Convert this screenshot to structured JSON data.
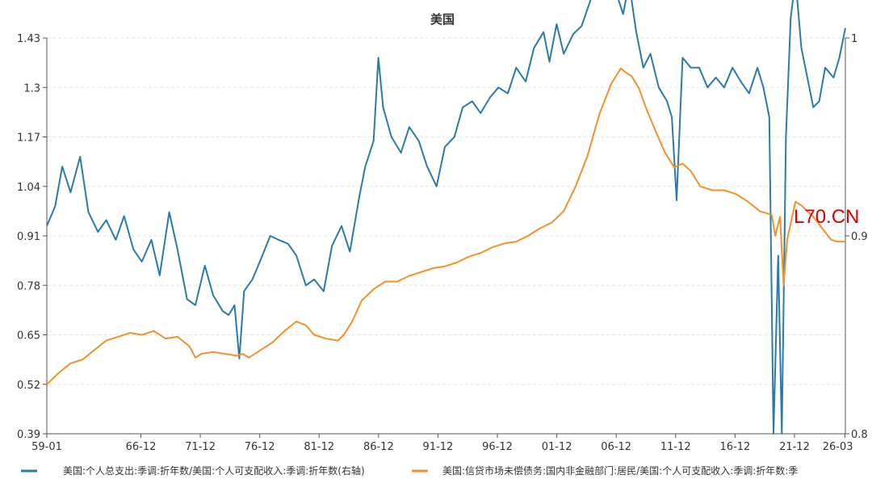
{
  "chart_data": {
    "type": "line",
    "title": "美国",
    "x_ticks": [
      "59-01",
      "66-12",
      "71-12",
      "76-12",
      "81-12",
      "86-12",
      "91-12",
      "96-12",
      "01-12",
      "06-12",
      "11-12",
      "16-12",
      "21-12",
      "26-03"
    ],
    "y_left": {
      "ticks": [
        "0.39",
        "0.52",
        "0.65",
        "0.78",
        "0.91",
        "1.04",
        "1.17",
        "1.3",
        "1.43"
      ],
      "ylim": [
        0.39,
        1.43
      ]
    },
    "y_right": {
      "ticks": [
        "0.8",
        "0.9",
        "1"
      ],
      "ylim": [
        0.8,
        1.0
      ]
    },
    "grid": "horizontal dashed",
    "legend_position": "bottom",
    "watermark": "L70.CN",
    "series": [
      {
        "name": "美国:个人总支出:季调:折年数/美国:个人可支配收入:季调:折年数(右轴)",
        "color": "#2b7ba6",
        "axis": "right",
        "points": [
          [
            1959.0,
            0.905
          ],
          [
            1959.7,
            0.915
          ],
          [
            1960.3,
            0.935
          ],
          [
            1961.0,
            0.922
          ],
          [
            1961.8,
            0.94
          ],
          [
            1962.5,
            0.912
          ],
          [
            1963.3,
            0.902
          ],
          [
            1964.0,
            0.908
          ],
          [
            1964.8,
            0.898
          ],
          [
            1965.5,
            0.91
          ],
          [
            1966.3,
            0.893
          ],
          [
            1967.0,
            0.887
          ],
          [
            1967.8,
            0.898
          ],
          [
            1968.5,
            0.88
          ],
          [
            1969.3,
            0.912
          ],
          [
            1970.0,
            0.893
          ],
          [
            1970.8,
            0.868
          ],
          [
            1971.5,
            0.865
          ],
          [
            1972.3,
            0.885
          ],
          [
            1973.0,
            0.87
          ],
          [
            1973.8,
            0.862
          ],
          [
            1974.3,
            0.86
          ],
          [
            1974.8,
            0.865
          ],
          [
            1975.2,
            0.838
          ],
          [
            1975.6,
            0.872
          ],
          [
            1976.3,
            0.878
          ],
          [
            1977.0,
            0.888
          ],
          [
            1977.8,
            0.9
          ],
          [
            1978.5,
            0.898
          ],
          [
            1979.3,
            0.896
          ],
          [
            1980.0,
            0.89
          ],
          [
            1980.8,
            0.875
          ],
          [
            1981.5,
            0.878
          ],
          [
            1982.3,
            0.872
          ],
          [
            1983.0,
            0.895
          ],
          [
            1983.8,
            0.905
          ],
          [
            1984.5,
            0.892
          ],
          [
            1985.3,
            0.92
          ],
          [
            1985.8,
            0.935
          ],
          [
            1986.5,
            0.948
          ],
          [
            1986.9,
            0.99
          ],
          [
            1987.3,
            0.965
          ],
          [
            1988.0,
            0.95
          ],
          [
            1988.8,
            0.942
          ],
          [
            1989.5,
            0.955
          ],
          [
            1990.3,
            0.948
          ],
          [
            1991.0,
            0.935
          ],
          [
            1991.8,
            0.925
          ],
          [
            1992.5,
            0.945
          ],
          [
            1993.3,
            0.95
          ],
          [
            1994.0,
            0.965
          ],
          [
            1994.8,
            0.968
          ],
          [
            1995.5,
            0.962
          ],
          [
            1996.3,
            0.97
          ],
          [
            1997.0,
            0.975
          ],
          [
            1997.8,
            0.972
          ],
          [
            1998.5,
            0.985
          ],
          [
            1999.3,
            0.978
          ],
          [
            2000.0,
            0.995
          ],
          [
            2000.8,
            1.003
          ],
          [
            2001.3,
            0.988
          ],
          [
            2001.9,
            1.007
          ],
          [
            2002.5,
            0.992
          ],
          [
            2003.3,
            1.002
          ],
          [
            2004.0,
            1.006
          ],
          [
            2004.8,
            1.02
          ],
          [
            2005.5,
            1.035
          ],
          [
            2006.2,
            1.03
          ],
          [
            2006.8,
            1.025
          ],
          [
            2007.5,
            1.012
          ],
          [
            2008.0,
            1.028
          ],
          [
            2008.6,
            1.003
          ],
          [
            2009.2,
            0.985
          ],
          [
            2009.8,
            0.992
          ],
          [
            2010.5,
            0.975
          ],
          [
            2011.2,
            0.968
          ],
          [
            2011.6,
            0.96
          ],
          [
            2012.0,
            0.918
          ],
          [
            2012.5,
            0.99
          ],
          [
            2013.2,
            0.985
          ],
          [
            2013.9,
            0.985
          ],
          [
            2014.6,
            0.975
          ],
          [
            2015.3,
            0.98
          ],
          [
            2016.0,
            0.975
          ],
          [
            2016.7,
            0.985
          ],
          [
            2017.4,
            0.978
          ],
          [
            2018.1,
            0.972
          ],
          [
            2018.8,
            0.985
          ],
          [
            2019.3,
            0.975
          ],
          [
            2019.8,
            0.96
          ],
          [
            2020.15,
            0.8
          ],
          [
            2020.55,
            0.89
          ],
          [
            2020.85,
            0.8
          ],
          [
            2021.2,
            0.95
          ],
          [
            2021.6,
            1.01
          ],
          [
            2022.0,
            1.03
          ],
          [
            2022.5,
            0.995
          ],
          [
            2023.0,
            0.98
          ],
          [
            2023.5,
            0.965
          ],
          [
            2024.0,
            0.968
          ],
          [
            2024.5,
            0.985
          ],
          [
            2025.2,
            0.98
          ],
          [
            2025.7,
            0.99
          ],
          [
            2026.2,
            1.005
          ]
        ]
      },
      {
        "name": "美国:信贷市场未偿债务:国内非金融部门:居民/美国:个人可支配收入:季调:折年数:季",
        "color": "#f0922b",
        "axis": "left",
        "points": [
          [
            1959.0,
            0.52
          ],
          [
            1960.0,
            0.55
          ],
          [
            1961.0,
            0.575
          ],
          [
            1962.0,
            0.585
          ],
          [
            1963.0,
            0.61
          ],
          [
            1964.0,
            0.635
          ],
          [
            1965.0,
            0.645
          ],
          [
            1966.0,
            0.655
          ],
          [
            1967.0,
            0.65
          ],
          [
            1968.0,
            0.66
          ],
          [
            1969.0,
            0.64
          ],
          [
            1970.0,
            0.645
          ],
          [
            1971.0,
            0.62
          ],
          [
            1971.5,
            0.59
          ],
          [
            1972.0,
            0.6
          ],
          [
            1973.0,
            0.605
          ],
          [
            1974.0,
            0.6
          ],
          [
            1975.0,
            0.595
          ],
          [
            1975.5,
            0.6
          ],
          [
            1976.0,
            0.59
          ],
          [
            1977.0,
            0.61
          ],
          [
            1978.0,
            0.63
          ],
          [
            1979.0,
            0.66
          ],
          [
            1980.0,
            0.685
          ],
          [
            1980.8,
            0.675
          ],
          [
            1981.5,
            0.65
          ],
          [
            1982.5,
            0.64
          ],
          [
            1983.5,
            0.635
          ],
          [
            1984.0,
            0.65
          ],
          [
            1984.7,
            0.685
          ],
          [
            1985.5,
            0.74
          ],
          [
            1986.5,
            0.77
          ],
          [
            1987.5,
            0.79
          ],
          [
            1988.5,
            0.79
          ],
          [
            1989.5,
            0.805
          ],
          [
            1990.5,
            0.815
          ],
          [
            1991.5,
            0.825
          ],
          [
            1992.5,
            0.83
          ],
          [
            1993.5,
            0.84
          ],
          [
            1994.5,
            0.855
          ],
          [
            1995.5,
            0.865
          ],
          [
            1996.5,
            0.88
          ],
          [
            1997.5,
            0.89
          ],
          [
            1998.5,
            0.895
          ],
          [
            1999.5,
            0.91
          ],
          [
            2000.5,
            0.93
          ],
          [
            2001.5,
            0.945
          ],
          [
            2002.5,
            0.975
          ],
          [
            2003.5,
            1.04
          ],
          [
            2004.5,
            1.12
          ],
          [
            2005.5,
            1.23
          ],
          [
            2006.5,
            1.31
          ],
          [
            2007.3,
            1.35
          ],
          [
            2007.7,
            1.34
          ],
          [
            2008.2,
            1.33
          ],
          [
            2008.8,
            1.3
          ],
          [
            2009.5,
            1.24
          ],
          [
            2010.3,
            1.18
          ],
          [
            2011.0,
            1.13
          ],
          [
            2011.8,
            1.09
          ],
          [
            2012.5,
            1.1
          ],
          [
            2013.2,
            1.08
          ],
          [
            2014.0,
            1.04
          ],
          [
            2015.0,
            1.03
          ],
          [
            2016.0,
            1.03
          ],
          [
            2017.0,
            1.02
          ],
          [
            2018.0,
            1.0
          ],
          [
            2019.0,
            0.975
          ],
          [
            2019.5,
            0.97
          ],
          [
            2020.0,
            0.965
          ],
          [
            2020.3,
            0.91
          ],
          [
            2020.7,
            0.96
          ],
          [
            2021.0,
            0.78
          ],
          [
            2021.3,
            0.9
          ],
          [
            2022.0,
            1.0
          ],
          [
            2022.5,
            0.99
          ],
          [
            2023.0,
            0.975
          ],
          [
            2023.5,
            0.96
          ],
          [
            2024.0,
            0.94
          ],
          [
            2024.5,
            0.92
          ],
          [
            2025.0,
            0.9
          ],
          [
            2025.5,
            0.895
          ],
          [
            2026.2,
            0.895
          ]
        ]
      }
    ]
  }
}
